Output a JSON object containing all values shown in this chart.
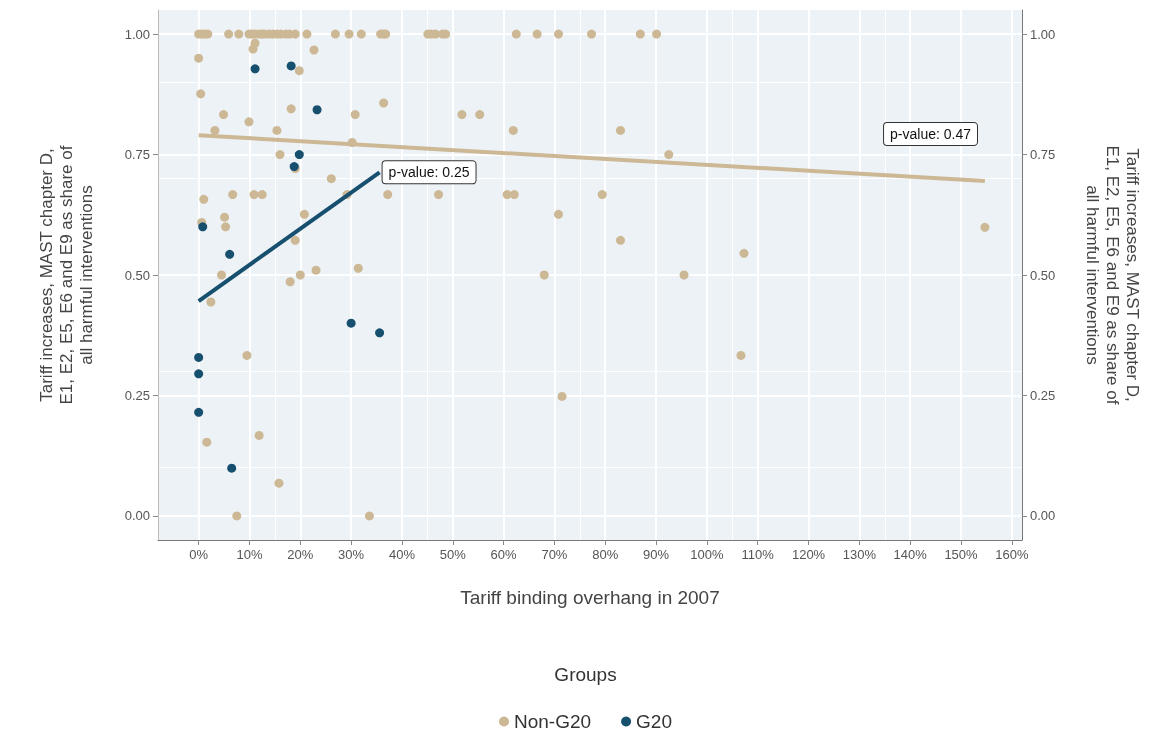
{
  "chart_data": {
    "type": "scatter",
    "xlabel": "Tariff binding overhang in 2007",
    "ylabel": "Tariff increases, MAST chapter D, E1, E2, E5, E6 and E9 as share of all harmful interventions",
    "y2label": "Tariff increases, MAST chapter D, E1, E2, E5, E6 and E9 as share of all harmful interventions",
    "legend_title": "Groups",
    "legend": "bottom",
    "grid": true,
    "marker": "circle",
    "xlim": [
      -8,
      162
    ],
    "ylim": [
      -0.05,
      1.05
    ],
    "y2lim": [
      -0.05,
      1.05
    ],
    "xticks": [
      {
        "value": 0,
        "label": "0%"
      },
      {
        "value": 10,
        "label": "10%"
      },
      {
        "value": 20,
        "label": "20%"
      },
      {
        "value": 30,
        "label": "30%"
      },
      {
        "value": 40,
        "label": "40%"
      },
      {
        "value": 50,
        "label": "50%"
      },
      {
        "value": 60,
        "label": "60%"
      },
      {
        "value": 70,
        "label": "70%"
      },
      {
        "value": 80,
        "label": "80%"
      },
      {
        "value": 90,
        "label": "90%"
      },
      {
        "value": 100,
        "label": "100%"
      },
      {
        "value": 110,
        "label": "110%"
      },
      {
        "value": 120,
        "label": "120%"
      },
      {
        "value": 130,
        "label": "130%"
      },
      {
        "value": 140,
        "label": "140%"
      },
      {
        "value": 150,
        "label": "150%"
      },
      {
        "value": 160,
        "label": "160%"
      }
    ],
    "yticks": [
      {
        "value": 0,
        "label": "0.00"
      },
      {
        "value": 0.25,
        "label": "0.25"
      },
      {
        "value": 0.5,
        "label": "0.50"
      },
      {
        "value": 0.75,
        "label": "0.75"
      },
      {
        "value": 1,
        "label": "1.00"
      }
    ],
    "y2ticks": [
      {
        "value": 0,
        "label": "0.00"
      },
      {
        "value": 0.25,
        "label": "0.25"
      },
      {
        "value": 0.5,
        "label": "0.50"
      },
      {
        "value": 0.75,
        "label": "0.75"
      },
      {
        "value": 1,
        "label": "1.00"
      }
    ],
    "annotations": [
      {
        "text": "p-value: 0.25",
        "x": 35.6,
        "y": 0.713
      },
      "p-value: 0.47"
    ],
    "series": [
      {
        "name": "Non-G20",
        "color": "#cdb895",
        "x": [
          0,
          0.6,
          1.2,
          1.8,
          5.9,
          7.9,
          9.9,
          10.5,
          11.1,
          11.9,
          12.5,
          13.0,
          13.8,
          14.6,
          15.4,
          16.2,
          17.2,
          17.9,
          19.0,
          21.3,
          26.9,
          29.6,
          32.0,
          35.8,
          36.4,
          36.8,
          45.1,
          45.8,
          46.6,
          48.0,
          48.6,
          62.5,
          66.6,
          70.8,
          77.3,
          86.9,
          90.1,
          0,
          0.4,
          2.4,
          4.9,
          9.9,
          3.2,
          15.4,
          10.7,
          11.1,
          22.7,
          19.8,
          18.2,
          30.8,
          36.4,
          16.0,
          30.2,
          19.0,
          26.1,
          1.0,
          6.7,
          10.9,
          12.5,
          37.2,
          47.2,
          29.2,
          0.6,
          5.1,
          5.3,
          20.8,
          19.0,
          4.5,
          18.0,
          20.0,
          23.1,
          31.4,
          9.5,
          1.6,
          11.9,
          15.8,
          7.5,
          33.6,
          51.8,
          55.3,
          61.9,
          83.0,
          92.5,
          60.7,
          62.1,
          79.4,
          70.8,
          83.0,
          68.0,
          95.5,
          107.3,
          154.7,
          71.5,
          106.7
        ],
        "values": [
          1,
          1,
          1,
          1,
          1,
          1,
          1,
          1,
          1,
          1,
          1,
          1,
          1,
          1,
          1,
          1,
          1,
          1,
          1,
          1,
          1,
          1,
          1,
          1,
          1,
          1,
          1,
          1,
          1,
          1,
          1,
          1,
          1,
          1,
          1,
          1,
          1,
          0.95,
          0.876,
          0.444,
          0.833,
          0.818,
          0.8,
          0.8,
          0.969,
          0.981,
          0.967,
          0.924,
          0.845,
          0.833,
          0.857,
          0.75,
          0.775,
          0.721,
          0.7,
          0.657,
          0.667,
          0.667,
          0.667,
          0.667,
          0.667,
          0.667,
          0.609,
          0.62,
          0.6,
          0.626,
          0.572,
          0.5,
          0.486,
          0.5,
          0.51,
          0.514,
          0.333,
          0.153,
          0.167,
          0.068,
          0,
          0,
          0.833,
          0.833,
          0.8,
          0.8,
          0.75,
          0.667,
          0.667,
          0.667,
          0.626,
          0.572,
          0.5,
          0.5,
          0.545,
          0.599,
          0.248,
          0.333
        ]
      },
      {
        "name": "G20",
        "color": "#174f6f",
        "x": [
          11.1,
          18.2,
          23.3,
          19.8,
          18.8,
          0.8,
          6.1,
          0,
          0,
          0,
          6.5,
          30.0,
          35.6
        ],
        "values": [
          0.928,
          0.934,
          0.843,
          0.75,
          0.725,
          0.6,
          0.543,
          0.329,
          0.295,
          0.215,
          0.099,
          0.4,
          0.38
        ]
      },
      {
        "type": "line",
        "marker": "none",
        "color": "#cdb895",
        "x": [
          0,
          154.7
        ],
        "values": [
          0.79,
          0.695
        ]
      },
      {
        "type": "line",
        "marker": "none",
        "color": "#174f6f",
        "x": [
          0,
          35.6
        ],
        "values": [
          0.446,
          0.713
        ]
      }
    ]
  }
}
